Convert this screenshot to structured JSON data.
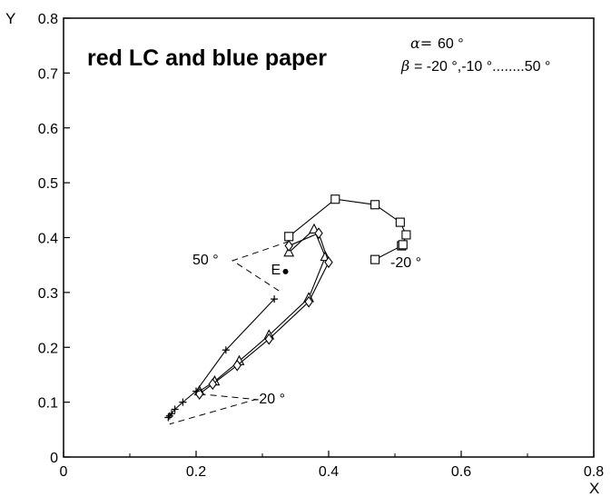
{
  "chart_data": {
    "type": "line",
    "title": "red LC and blue paper",
    "alpha_label": "α=",
    "alpha_value": "60 °",
    "beta_label": "β",
    "beta_value": "= -20 °,-10 °........50 °",
    "xlabel": "X",
    "ylabel": "Y",
    "xlim": [
      0,
      0.8
    ],
    "ylim": [
      0,
      0.8
    ],
    "xticks": [
      "0",
      "0.2",
      "0.4",
      "0.6",
      "0.8"
    ],
    "yticks": [
      "0",
      "0.1",
      "0.2",
      "0.3",
      "0.4",
      "0.5",
      "0.6",
      "0.7",
      "0.8"
    ],
    "grid": false,
    "colors": {
      "line": "#000000",
      "background": "#ffffff"
    },
    "white_point": {
      "label": "E",
      "x": 0.335,
      "y": 0.338
    },
    "annotations": [
      {
        "text": "50 °",
        "leader_lines": [
          [
            [
              0.325,
              0.303
            ],
            [
              0.255,
              0.358
            ],
            [
              0.34,
              0.393
            ]
          ]
        ]
      },
      {
        "text": "-20 °",
        "leader_lines": [
          [
            [
              0.205,
              0.115
            ],
            [
              0.29,
              0.105
            ],
            [
              0.16,
              0.06
            ]
          ]
        ]
      },
      {
        "text": "-20 °"
      }
    ],
    "series": [
      {
        "marker": "square",
        "x": [
          0.47,
          0.51,
          0.512,
          0.517,
          0.508,
          0.47,
          0.41,
          0.34
        ],
        "y": [
          0.36,
          0.385,
          0.387,
          0.405,
          0.428,
          0.46,
          0.47,
          0.402
        ]
      },
      {
        "marker": "triangle",
        "x": [
          0.205,
          0.228,
          0.265,
          0.31,
          0.37,
          0.395,
          0.378,
          0.34
        ],
        "y": [
          0.12,
          0.138,
          0.175,
          0.222,
          0.29,
          0.365,
          0.415,
          0.373
        ]
      },
      {
        "marker": "diamond",
        "x": [
          0.205,
          0.225,
          0.262,
          0.31,
          0.37,
          0.4,
          0.385,
          0.34
        ],
        "y": [
          0.115,
          0.133,
          0.167,
          0.215,
          0.283,
          0.355,
          0.408,
          0.385
        ]
      },
      {
        "marker": "plus",
        "x": [
          0.158,
          0.16,
          0.163,
          0.168,
          0.18,
          0.2,
          0.245,
          0.318
        ],
        "y": [
          0.072,
          0.075,
          0.079,
          0.087,
          0.1,
          0.12,
          0.195,
          0.288
        ]
      }
    ]
  }
}
